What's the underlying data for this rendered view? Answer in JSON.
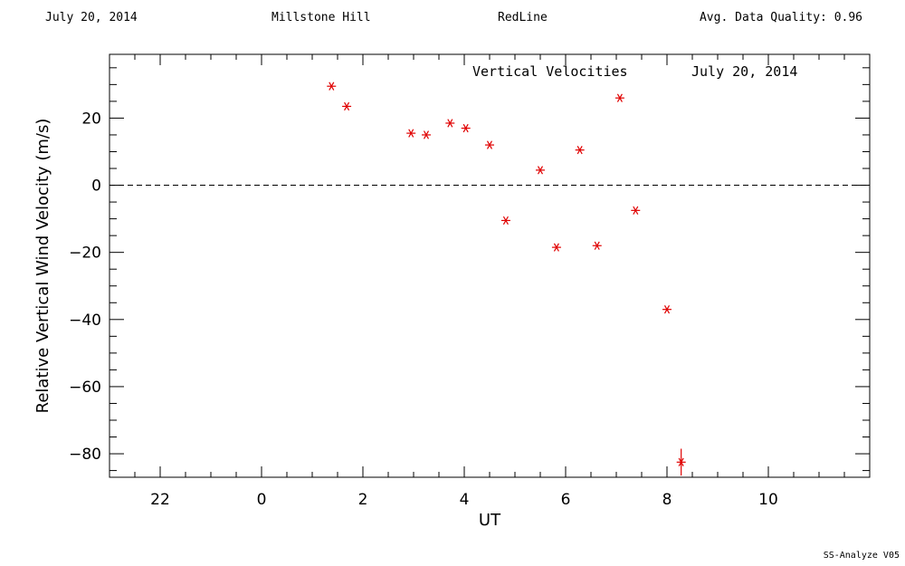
{
  "header": {
    "date": "July 20, 2014",
    "site": "Millstone Hill",
    "instrument": "RedLine",
    "quality": "Avg. Data Quality: 0.96"
  },
  "footer": {
    "software": "SS-Analyze V05"
  },
  "chart_data": {
    "type": "scatter",
    "title": "Vertical Velocities",
    "annotation_date": "July 20, 2014",
    "xlabel": "UT",
    "ylabel": "Relative Vertical Wind Velocity (m/s)",
    "xlim": [
      21,
      36
    ],
    "ylim": [
      -87,
      39
    ],
    "x_ticks": [
      22,
      24,
      26,
      28,
      30,
      32,
      34
    ],
    "x_tick_labels": [
      "22",
      "0",
      "2",
      "4",
      "6",
      "8",
      "10"
    ],
    "y_ticks": [
      -80,
      -60,
      -40,
      -20,
      0,
      20
    ],
    "y_tick_labels": [
      "−80",
      "−60",
      "−40",
      "−20",
      "0",
      "20"
    ],
    "zero_line": true,
    "marker": "asterisk",
    "marker_color": "#e00000",
    "points": [
      {
        "x": 25.38,
        "y": 29.5
      },
      {
        "x": 25.68,
        "y": 23.5
      },
      {
        "x": 26.95,
        "y": 15.5
      },
      {
        "x": 27.25,
        "y": 15.0
      },
      {
        "x": 27.72,
        "y": 18.5
      },
      {
        "x": 28.03,
        "y": 17.0
      },
      {
        "x": 28.5,
        "y": 12.0
      },
      {
        "x": 28.82,
        "y": -10.5
      },
      {
        "x": 29.5,
        "y": 4.5
      },
      {
        "x": 29.82,
        "y": -18.5
      },
      {
        "x": 30.28,
        "y": 10.5
      },
      {
        "x": 30.62,
        "y": -18.0
      },
      {
        "x": 31.07,
        "y": 26.0
      },
      {
        "x": 31.38,
        "y": -7.5
      },
      {
        "x": 32.0,
        "y": -37.0
      },
      {
        "x": 32.28,
        "y": -82.5,
        "err": 4
      }
    ]
  }
}
